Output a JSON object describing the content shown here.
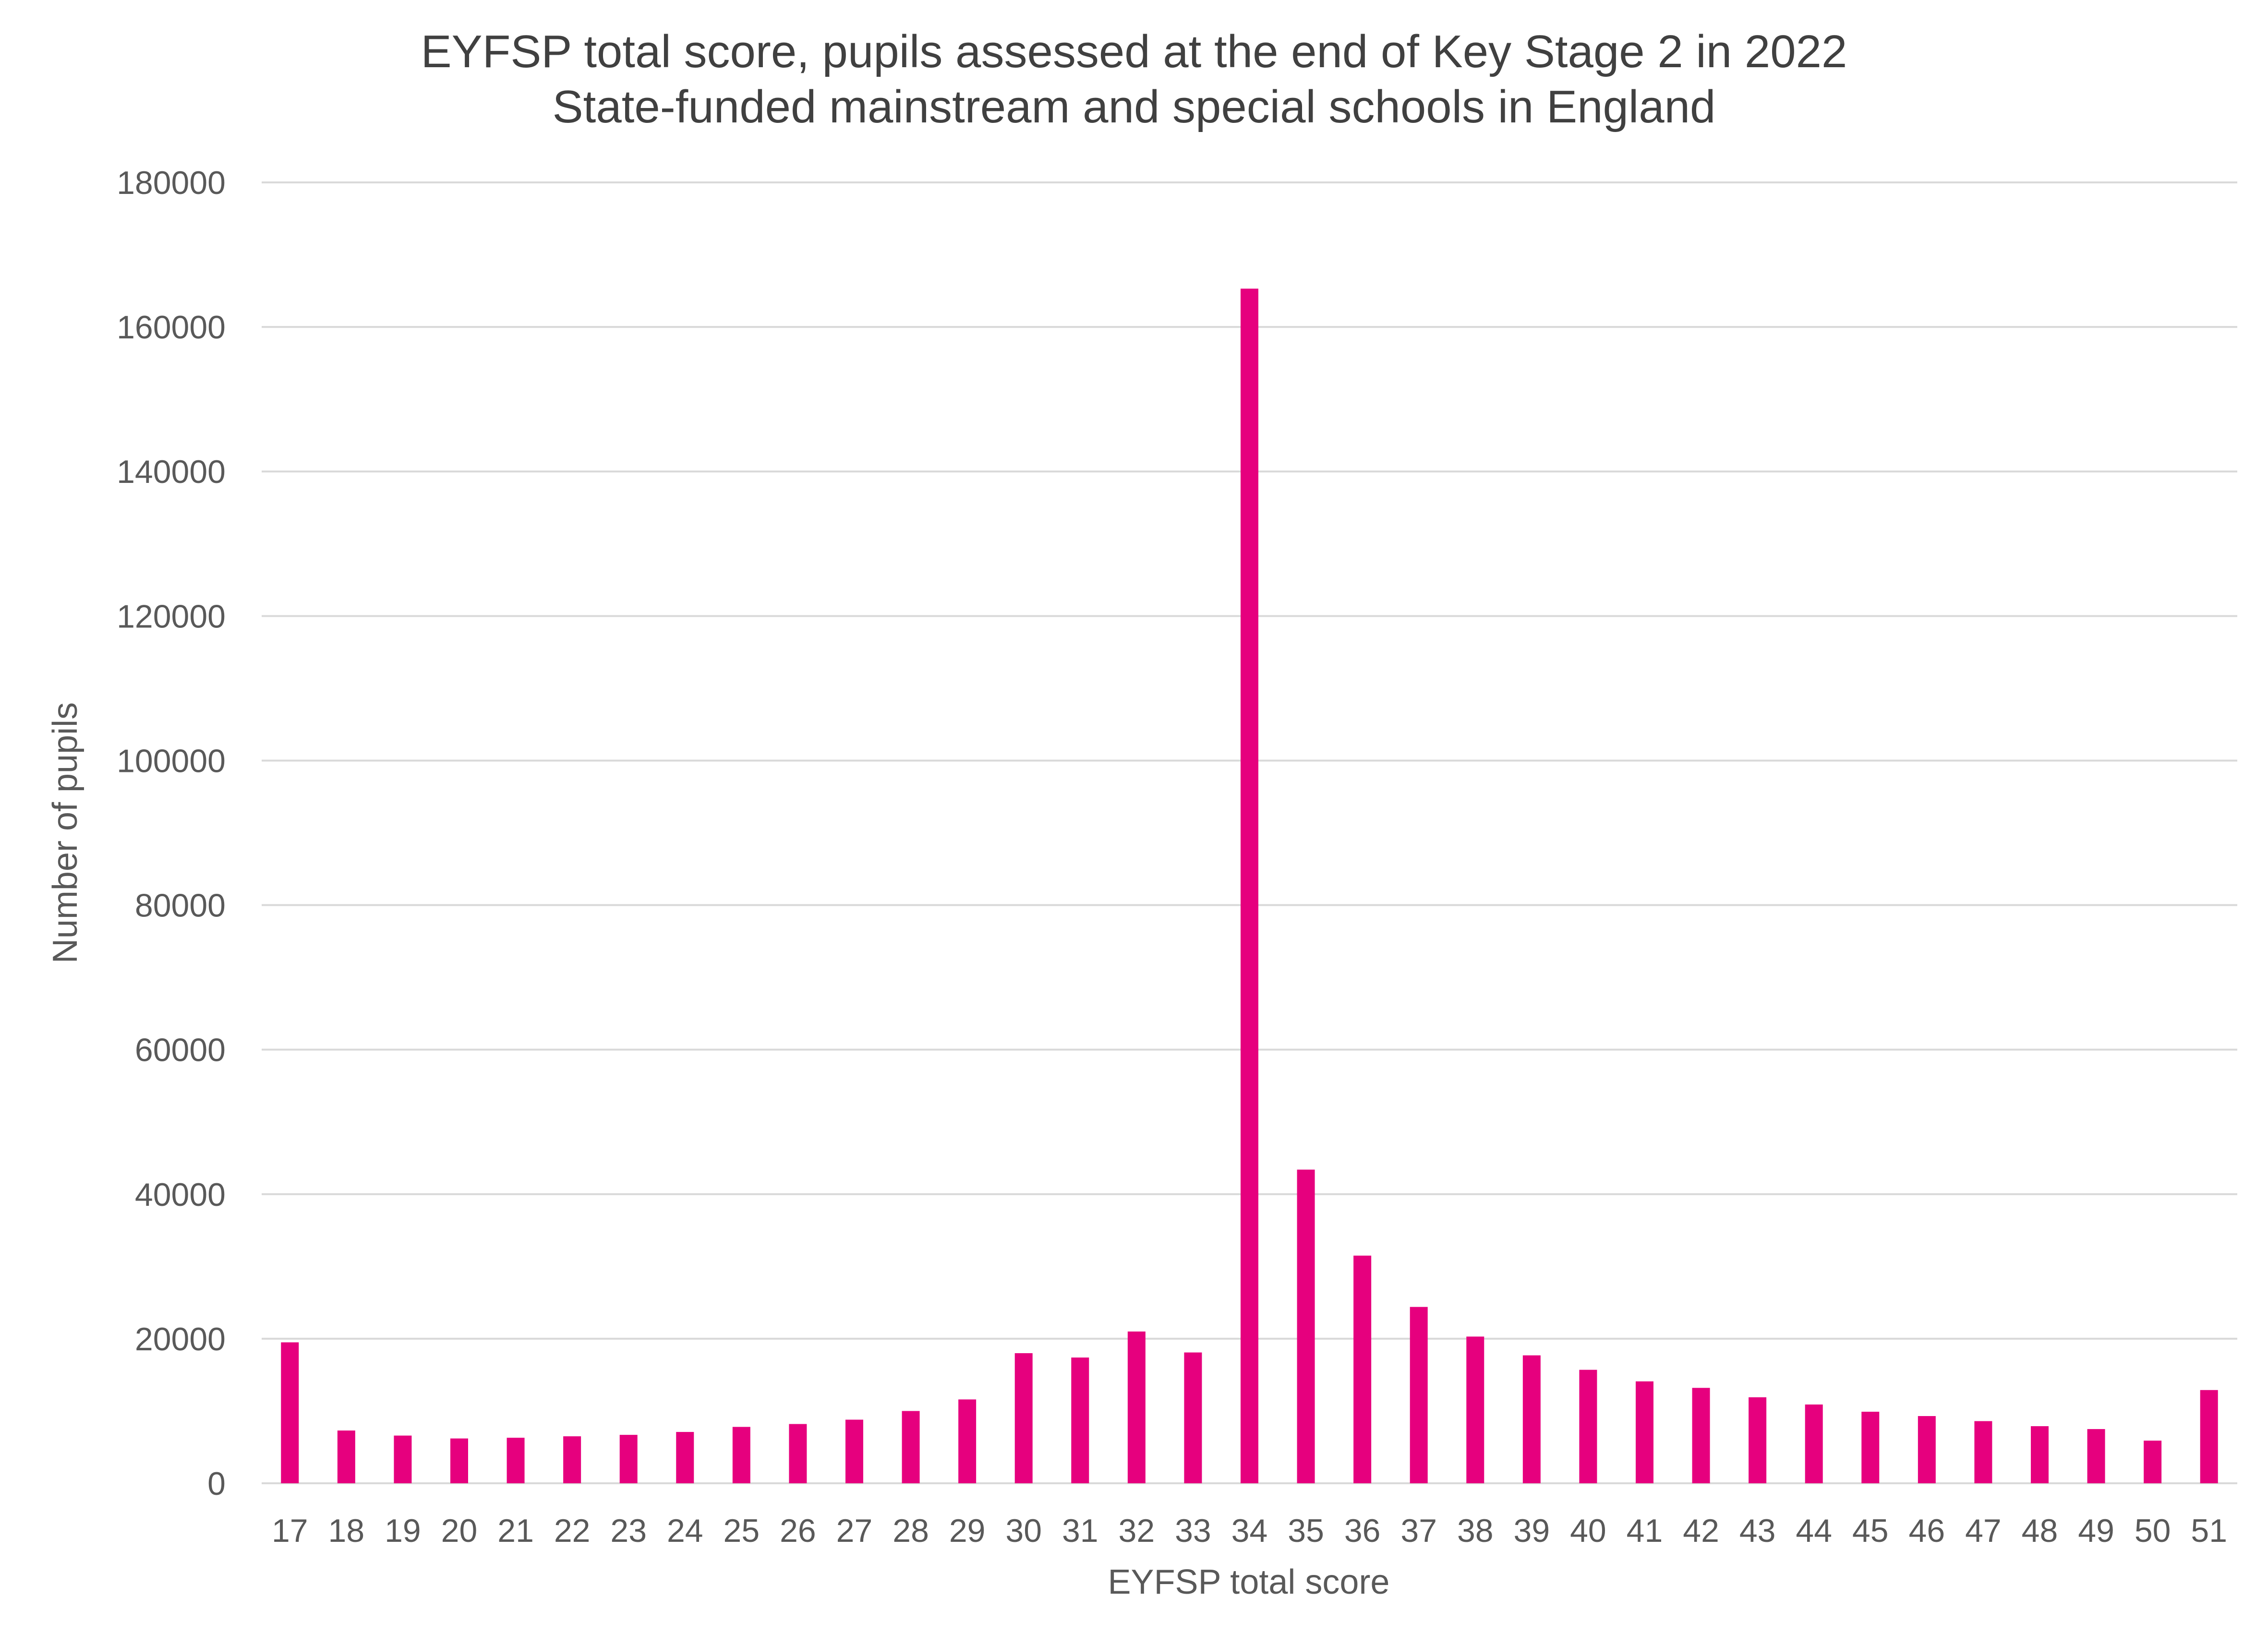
{
  "chart_data": {
    "type": "bar",
    "title": "EYFSP total score, pupils assessed at the end of Key Stage 2 in 2022",
    "subtitle": "State-funded mainstream and special schools in England",
    "xlabel": "EYFSP total score",
    "ylabel": "Number of pupils",
    "ylim": [
      0,
      180000
    ],
    "y_ticks": [
      "0",
      "20000",
      "40000",
      "60000",
      "80000",
      "100000",
      "120000",
      "140000",
      "160000",
      "180000"
    ],
    "y_tick_values": [
      0,
      20000,
      40000,
      60000,
      80000,
      100000,
      120000,
      140000,
      160000,
      180000
    ],
    "grid": true,
    "legend": "none",
    "bar_color": "#e6007e",
    "categories": [
      "17",
      "18",
      "19",
      "20",
      "21",
      "22",
      "23",
      "24",
      "25",
      "26",
      "27",
      "28",
      "29",
      "30",
      "31",
      "32",
      "33",
      "34",
      "35",
      "36",
      "37",
      "38",
      "39",
      "40",
      "41",
      "42",
      "43",
      "44",
      "45",
      "46",
      "47",
      "48",
      "49",
      "50",
      "51"
    ],
    "values": [
      19500,
      7300,
      6600,
      6200,
      6300,
      6500,
      6700,
      7100,
      7800,
      8200,
      8800,
      10000,
      11600,
      18000,
      17400,
      21000,
      18100,
      165300,
      43400,
      31500,
      24400,
      20300,
      17700,
      15700,
      14100,
      13200,
      11900,
      10900,
      9900,
      9300,
      8600,
      7900,
      7500,
      5900,
      12900
    ]
  }
}
